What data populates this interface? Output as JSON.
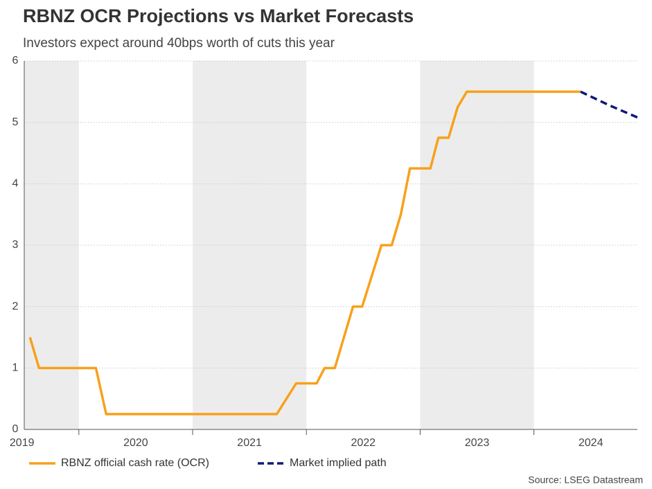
{
  "chart_data": {
    "type": "line",
    "title": "RBNZ OCR Projections vs Market Forecasts",
    "subtitle": "Investors expect around 40bps worth of cuts this year",
    "source": "Source: LSEG Datastream",
    "x": [
      2019.57,
      2019.65,
      2020.15,
      2020.24,
      2021.74,
      2021.91,
      2022.09,
      2022.16,
      2022.25,
      2022.41,
      2022.49,
      2022.66,
      2022.75,
      2022.83,
      2022.91,
      2023.09,
      2023.16,
      2023.25,
      2023.33,
      2023.41,
      2024.41,
      2024.66,
      2024.91
    ],
    "series": [
      {
        "name": "RBNZ official cash rate (OCR)",
        "color": "#f7a11a",
        "style": "solid",
        "values": [
          1.5,
          1.0,
          1.0,
          0.25,
          0.25,
          0.75,
          0.75,
          1.0,
          1.0,
          2.0,
          2.0,
          3.0,
          3.0,
          3.5,
          4.25,
          4.25,
          4.75,
          4.75,
          5.25,
          5.5,
          5.5,
          null,
          null
        ]
      },
      {
        "name": "Market implied path",
        "color": "#0b1a78",
        "style": "dashed",
        "values": [
          null,
          null,
          null,
          null,
          null,
          null,
          null,
          null,
          null,
          null,
          null,
          null,
          null,
          null,
          null,
          null,
          null,
          null,
          null,
          null,
          5.5,
          5.28,
          5.08
        ]
      }
    ],
    "xlim": [
      2019.52,
      2024.91
    ],
    "xticks": [
      {
        "value": 2019.5,
        "label": "2019"
      },
      {
        "value": 2020.5,
        "label": "2020"
      },
      {
        "value": 2021.5,
        "label": "2021"
      },
      {
        "value": 2022.5,
        "label": "2022"
      },
      {
        "value": 2023.5,
        "label": "2023"
      },
      {
        "value": 2024.5,
        "label": "2024"
      }
    ],
    "ylim": [
      0,
      6
    ],
    "yticks": [
      0,
      1,
      2,
      3,
      4,
      5,
      6
    ],
    "grid": true
  }
}
